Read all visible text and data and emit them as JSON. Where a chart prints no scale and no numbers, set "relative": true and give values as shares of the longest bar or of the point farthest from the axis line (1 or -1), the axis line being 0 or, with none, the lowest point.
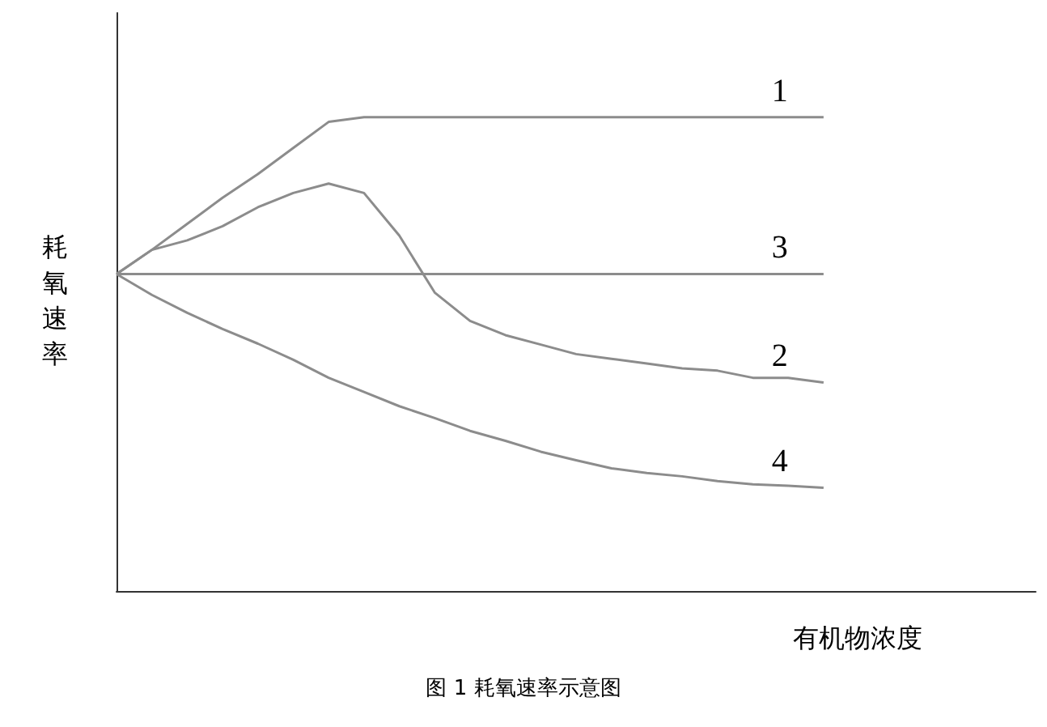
{
  "chart_data": {
    "type": "line",
    "title": "图 1 耗氧速率示意图",
    "xlabel": "有机物浓度",
    "ylabel": "耗氧速率",
    "relative": true,
    "marker": "none",
    "line_style": "solid",
    "categories": [
      null,
      null,
      null,
      null,
      null,
      null,
      null,
      null,
      null,
      null,
      null,
      null,
      null,
      null,
      null,
      null,
      null,
      null,
      null,
      null,
      null,
      null,
      null,
      null,
      null,
      null,
      null
    ],
    "series": [
      {
        "name": "1",
        "color": "#8c8c8c",
        "values": [
          0.669,
          0.72,
          0.775,
          0.83,
          0.88,
          0.935,
          0.99,
          1,
          1,
          1,
          1,
          1,
          1,
          1,
          1,
          1,
          1,
          1,
          1,
          1,
          1,
          null,
          null,
          null,
          null,
          null,
          null
        ]
      },
      {
        "name": "2",
        "color": "#8c8c8c",
        "values": [
          0.669,
          0.72,
          0.74,
          0.77,
          0.81,
          0.84,
          0.86,
          0.84,
          0.75,
          0.63,
          0.57,
          0.54,
          0.52,
          0.5,
          0.49,
          0.48,
          0.47,
          0.465,
          0.45,
          0.45,
          0.44,
          null,
          null,
          null,
          null,
          null,
          null
        ]
      },
      {
        "name": "3",
        "color": "#8c8c8c",
        "values": [
          0.669,
          0.669,
          0.669,
          0.669,
          0.669,
          0.669,
          0.669,
          0.669,
          0.669,
          0.669,
          0.669,
          0.669,
          0.669,
          0.669,
          0.669,
          0.669,
          0.669,
          0.669,
          0.669,
          0.669,
          0.669,
          null,
          null,
          null,
          null,
          null,
          null
        ]
      },
      {
        "name": "4",
        "color": "#8c8c8c",
        "values": [
          0.669,
          0.625,
          0.587,
          0.553,
          0.522,
          0.488,
          0.45,
          0.42,
          0.39,
          0.365,
          0.338,
          0.317,
          0.294,
          0.276,
          0.259,
          0.249,
          0.242,
          0.232,
          0.225,
          0.222,
          0.218,
          null,
          null,
          null,
          null,
          null,
          null
        ]
      }
    ]
  }
}
